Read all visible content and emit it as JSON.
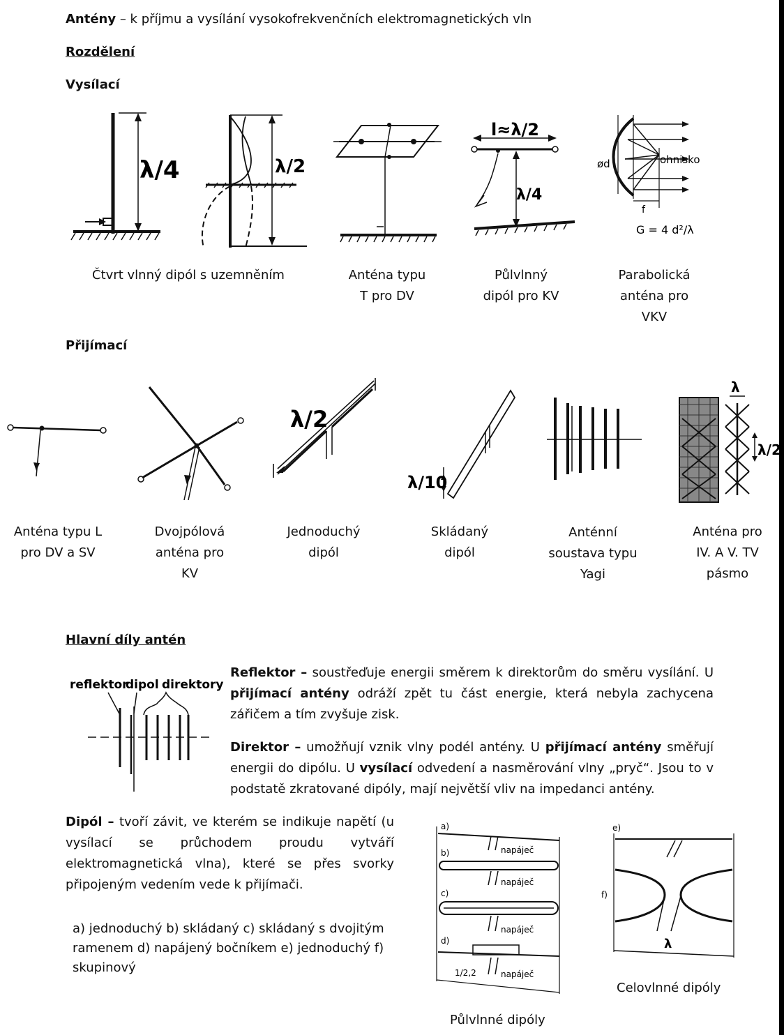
{
  "intro": {
    "term": "Antény",
    "rest": " – k příjmu a vysílání vysokofrekvenčních elektromagnetických vln"
  },
  "section_division": "Rozdělení",
  "transmit": {
    "heading": "Vysílací",
    "fig_labels": {
      "quarter": "λ/4",
      "half": "λ/2",
      "dipole_len": "l≈λ/2",
      "dipole_h": "λ/4",
      "diam": "ød",
      "focus": "ohnisko",
      "f": "f",
      "gain": "G = 4 d²/λ"
    },
    "captions": [
      {
        "lines": [
          "Čtvrt vlnný dipól s uzemněním"
        ]
      },
      {
        "lines": [
          "Anténa typu",
          "T pro DV"
        ]
      },
      {
        "lines": [
          "Půlvlnný",
          "dipól pro KV"
        ]
      },
      {
        "lines": [
          "Parabolická",
          "anténa pro",
          "VKV"
        ]
      }
    ]
  },
  "receive": {
    "heading": "Přijímací",
    "fig_labels": {
      "half": "λ/2",
      "tenth": "λ/10",
      "lambda": "λ",
      "lambda_half": "λ/2"
    },
    "captions": [
      {
        "lines": [
          "Anténa typu L",
          "pro DV a SV"
        ]
      },
      {
        "lines": [
          "Dvojpólová",
          "anténa pro",
          "KV"
        ]
      },
      {
        "lines": [
          "Jednoduchý",
          "dipól"
        ]
      },
      {
        "lines": [
          "Skládaný",
          "dipól"
        ]
      },
      {
        "lines": [
          "Anténní",
          "soustava typu",
          "Yagi"
        ]
      },
      {
        "lines": [
          "Anténa pro",
          "IV. A V. TV",
          "pásmo"
        ]
      }
    ]
  },
  "parts": {
    "heading": "Hlavní díly antén",
    "fig_labels": {
      "reflektor": "reflektor",
      "dipol": "dipol",
      "direktory": "direktory"
    },
    "reflektor": {
      "term": "Reflektor –",
      "t1": " soustřeďuje energii směrem k direktorům do směru vysílání. U ",
      "b1": "přijímací antény",
      "t2": " odráží zpět tu část energie, která nebyla zachycena zářičem a tím zvyšuje zisk."
    },
    "direktor": {
      "term": "Direktor –",
      "t1": " umožňují vznik vlny podél antény. U ",
      "b1": "přijímací antény",
      "t2": " směřují energii do dipólu. U ",
      "b2": "vysílací",
      "t3": " odvedení a nasměrování vlny „pryč“. Jsou to v podstatě zkratované dipóly, mají největší vliv na impedanci antény."
    },
    "dipol": {
      "term": "Dipól –",
      "t1": " tvoří závit, ve kterém se indikuje napětí (u vysílací se průchodem proudu vytváří elektromagnetická vlna), které se přes svorky připojeným vedením vede k přijímači."
    },
    "list": "a) jednoduchý b) skládaný c) skládaný s dvojitým ramenem d) napájený bočníkem e) jednoduchý f) skupinový"
  },
  "dipoles_fig": {
    "letters": [
      "a)",
      "b)",
      "c)",
      "d)",
      "e)",
      "f)"
    ],
    "feeder": "napáječ",
    "ratio": "1/2,2",
    "lambda": "λ",
    "cap_half": "Půlvlnné dipóly",
    "cap_full": "Celovlnné dipóly"
  }
}
